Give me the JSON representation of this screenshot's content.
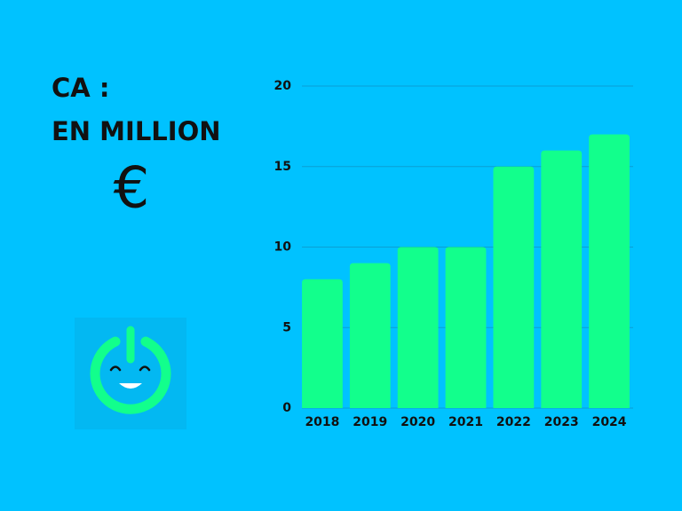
{
  "chart_data": {
    "type": "bar",
    "title": "CA :",
    "subtitle": "EN MILLION",
    "annotation": "€",
    "categories": [
      "2018",
      "2019",
      "2020",
      "2021",
      "2022",
      "2023",
      "2024"
    ],
    "values": [
      8,
      9,
      10,
      10,
      15,
      16,
      17
    ],
    "color": "#12ff8c",
    "ylim": [
      0,
      20
    ],
    "yticks": [
      0,
      5,
      10,
      15,
      20
    ],
    "grid": true
  }
}
